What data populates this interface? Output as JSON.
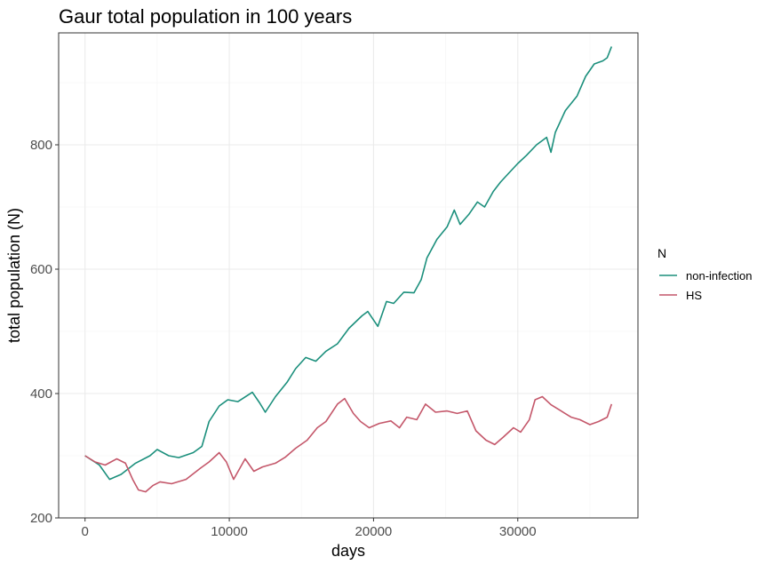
{
  "chart_data": {
    "type": "line",
    "title": "Gaur total population in 100 years",
    "xlabel": "days",
    "ylabel": "total population (N)",
    "xlim": [
      -1830,
      38330
    ],
    "ylim": [
      200,
      980
    ],
    "x_ticks": [
      0,
      10000,
      20000,
      30000
    ],
    "x_tick_labels": [
      "0",
      "10000",
      "20000",
      "30000"
    ],
    "y_ticks": [
      200,
      400,
      600,
      800
    ],
    "y_tick_labels": [
      "200",
      "400",
      "600",
      "800"
    ],
    "grid": true,
    "legend": {
      "title": "N",
      "position": "right"
    },
    "series": [
      {
        "name": "non-infection",
        "color": "#1b8f7c",
        "x": [
          0,
          1000,
          1700,
          2500,
          3500,
          4500,
          5000,
          5800,
          6500,
          7500,
          8100,
          8600,
          9300,
          9900,
          10600,
          11600,
          12100,
          12500,
          13200,
          14000,
          14600,
          15300,
          16000,
          16700,
          17500,
          18300,
          19200,
          19600,
          20300,
          20900,
          21400,
          22100,
          22800,
          23300,
          23700,
          24400,
          25100,
          25600,
          26000,
          26600,
          27200,
          27700,
          28300,
          28800,
          29400,
          30000,
          30600,
          31300,
          32000,
          32300,
          32600,
          33300,
          34100,
          34700,
          35300,
          35900,
          36200,
          36500
        ],
        "y": [
          300,
          285,
          262,
          270,
          288,
          300,
          310,
          300,
          297,
          305,
          315,
          355,
          380,
          390,
          387,
          402,
          385,
          370,
          395,
          418,
          440,
          458,
          452,
          468,
          480,
          505,
          525,
          532,
          508,
          548,
          545,
          563,
          562,
          583,
          618,
          648,
          668,
          695,
          672,
          688,
          708,
          700,
          725,
          740,
          755,
          770,
          783,
          800,
          812,
          788,
          820,
          855,
          878,
          910,
          930,
          935,
          940,
          958
        ]
      },
      {
        "name": "HS",
        "color": "#c4576a",
        "x": [
          0,
          700,
          1400,
          2200,
          2800,
          3300,
          3700,
          4200,
          4700,
          5200,
          6000,
          7000,
          8000,
          8600,
          9300,
          9800,
          10300,
          11100,
          11700,
          12300,
          13200,
          13900,
          14600,
          15400,
          16100,
          16700,
          17500,
          18000,
          18600,
          19100,
          19700,
          20400,
          21200,
          21800,
          22300,
          23000,
          23600,
          24300,
          25100,
          25800,
          26500,
          27100,
          27800,
          28400,
          29000,
          29700,
          30200,
          30800,
          31200,
          31700,
          32300,
          33000,
          33700,
          34300,
          35000,
          35600,
          36200,
          36500
        ],
        "y": [
          300,
          290,
          285,
          295,
          288,
          262,
          245,
          242,
          252,
          258,
          255,
          262,
          280,
          290,
          305,
          290,
          262,
          295,
          275,
          282,
          288,
          298,
          312,
          325,
          345,
          355,
          383,
          392,
          368,
          355,
          345,
          352,
          356,
          345,
          362,
          358,
          383,
          370,
          372,
          368,
          372,
          340,
          325,
          318,
          330,
          345,
          338,
          358,
          390,
          395,
          382,
          372,
          362,
          358,
          350,
          355,
          362,
          383
        ]
      }
    ]
  }
}
